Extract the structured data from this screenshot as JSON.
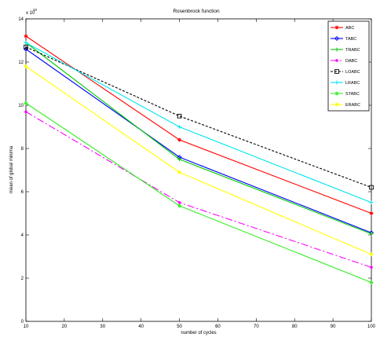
{
  "chart_data": {
    "type": "line",
    "title": "Rosenbrock function",
    "xlabel": "number of cycles",
    "ylabel": "mean of global minima",
    "exponent_label": "x 10",
    "exponent_power": "10",
    "xlim": [
      10,
      100
    ],
    "ylim": [
      0,
      14
    ],
    "x_ticks": [
      "10",
      "20",
      "30",
      "40",
      "50",
      "60",
      "70",
      "80",
      "90",
      "100"
    ],
    "y_ticks": [
      "0",
      "2",
      "4",
      "6",
      "8",
      "10",
      "12",
      "14"
    ],
    "x_tick_values": [
      10,
      20,
      30,
      40,
      50,
      60,
      70,
      80,
      90,
      100
    ],
    "y_tick_values": [
      0,
      2,
      4,
      6,
      8,
      10,
      12,
      14
    ],
    "grid": false,
    "legend_position": "top-right",
    "x": [
      10,
      50,
      100
    ],
    "series": [
      {
        "name": "ABC",
        "values": [
          13.2,
          8.4,
          5.0
        ],
        "color": "#ff0000",
        "dash": "",
        "marker": "star"
      },
      {
        "name": "TABC",
        "values": [
          12.6,
          7.6,
          4.1
        ],
        "color": "#0000ff",
        "dash": "",
        "marker": "diamond"
      },
      {
        "name": "TRABC",
        "values": [
          12.9,
          7.5,
          4.05
        ],
        "color": "#00cc00",
        "dash": "",
        "marker": "plus"
      },
      {
        "name": "DABC",
        "values": [
          9.7,
          5.5,
          2.5
        ],
        "color": "#ff00ff",
        "dash": "9,3,2,3",
        "marker": "dot"
      },
      {
        "name": "LOABC",
        "values": [
          12.7,
          9.5,
          6.2
        ],
        "color": "#000000",
        "dash": "3,2",
        "marker": "square"
      },
      {
        "name": "LRABC",
        "values": [
          12.9,
          9.0,
          5.5
        ],
        "color": "#00e5ee",
        "dash": "",
        "marker": "plus"
      },
      {
        "name": "STABC",
        "values": [
          10.1,
          5.35,
          1.8
        ],
        "color": "#33ee22",
        "dash": "",
        "marker": "star"
      },
      {
        "name": "ERABC",
        "values": [
          11.8,
          6.9,
          3.1
        ],
        "color": "#ffff00",
        "dash": "",
        "marker": "star"
      }
    ]
  }
}
